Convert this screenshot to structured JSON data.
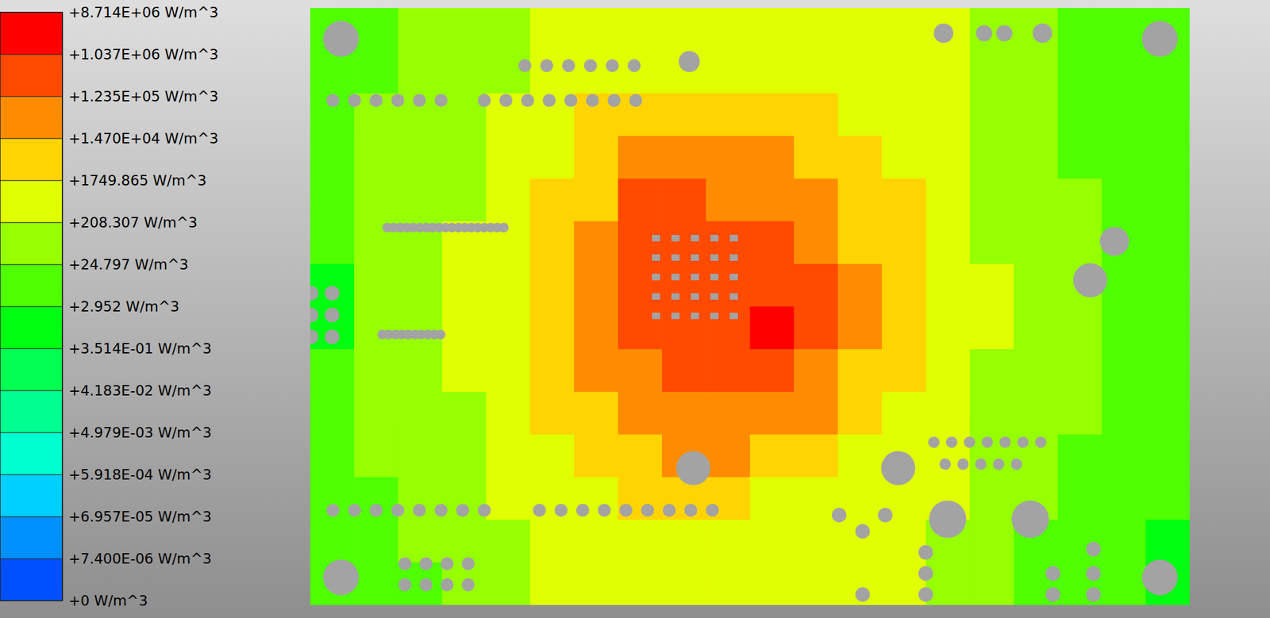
{
  "chart_data": {
    "type": "heatmap",
    "cells": [
      [
        8,
        8,
        70,
        70,
        70,
        600,
        600,
        600,
        600,
        600,
        600,
        600,
        600,
        600,
        600,
        70,
        70,
        8,
        8,
        8
      ],
      [
        8,
        8,
        70,
        70,
        70,
        600,
        600,
        600,
        600,
        600,
        600,
        600,
        600,
        600,
        600,
        70,
        70,
        8,
        8,
        8
      ],
      [
        8,
        70,
        70,
        70,
        600,
        600,
        5000,
        5000,
        5000,
        5000,
        5000,
        5000,
        600,
        600,
        600,
        70,
        70,
        8,
        8,
        8
      ],
      [
        8,
        70,
        70,
        70,
        600,
        600,
        5000,
        40000,
        40000,
        40000,
        40000,
        5000,
        5000,
        600,
        600,
        70,
        70,
        8,
        8,
        8
      ],
      [
        8,
        70,
        70,
        70,
        600,
        5000,
        5000,
        350000,
        350000,
        40000,
        40000,
        40000,
        5000,
        5000,
        600,
        70,
        70,
        70,
        8,
        8
      ],
      [
        8,
        70,
        70,
        600,
        600,
        5000,
        40000,
        350000,
        350000,
        350000,
        350000,
        40000,
        5000,
        5000,
        600,
        70,
        70,
        70,
        8,
        8
      ],
      [
        1,
        70,
        70,
        600,
        600,
        5000,
        40000,
        350000,
        350000,
        350000,
        350000,
        350000,
        40000,
        5000,
        600,
        600,
        70,
        70,
        8,
        8
      ],
      [
        1,
        70,
        70,
        600,
        600,
        5000,
        40000,
        350000,
        350000,
        350000,
        3000000,
        350000,
        40000,
        5000,
        600,
        600,
        70,
        70,
        8,
        8
      ],
      [
        8,
        70,
        70,
        600,
        600,
        5000,
        40000,
        40000,
        350000,
        350000,
        350000,
        40000,
        5000,
        5000,
        600,
        70,
        70,
        70,
        8,
        8
      ],
      [
        8,
        70,
        70,
        70,
        600,
        5000,
        5000,
        40000,
        40000,
        40000,
        40000,
        40000,
        5000,
        600,
        600,
        70,
        70,
        70,
        8,
        8
      ],
      [
        8,
        70,
        70,
        70,
        600,
        600,
        5000,
        5000,
        40000,
        40000,
        5000,
        5000,
        600,
        600,
        600,
        70,
        70,
        8,
        8,
        8
      ],
      [
        8,
        8,
        70,
        70,
        600,
        600,
        600,
        5000,
        5000,
        5000,
        600,
        600,
        600,
        600,
        600,
        70,
        70,
        8,
        8,
        8
      ],
      [
        8,
        8,
        70,
        70,
        70,
        600,
        600,
        600,
        600,
        600,
        600,
        600,
        600,
        600,
        70,
        70,
        8,
        8,
        8,
        1
      ],
      [
        8,
        8,
        8,
        70,
        70,
        600,
        600,
        600,
        600,
        600,
        600,
        600,
        600,
        600,
        70,
        70,
        8,
        8,
        8,
        1
      ]
    ],
    "colorbar": {
      "range": [
        0,
        8714000
      ],
      "ticks": [
        {
          "value": 0,
          "label": "+0 W/m^3"
        },
        {
          "value": 7.4e-06,
          "label": "+7.400E-06 W/m^3"
        },
        {
          "value": 6.957e-05,
          "label": "+6.957E-05 W/m^3"
        },
        {
          "value": 0.0005918,
          "label": "+5.918E-04 W/m^3"
        },
        {
          "value": 0.004979,
          "label": "+4.979E-03 W/m^3"
        },
        {
          "value": 0.04183,
          "label": "+4.183E-02 W/m^3"
        },
        {
          "value": 0.3514,
          "label": "+3.514E-01 W/m^3"
        },
        {
          "value": 2.952,
          "label": "+2.952 W/m^3"
        },
        {
          "value": 24.797,
          "label": "+24.797 W/m^3"
        },
        {
          "value": 208.307,
          "label": "+208.307 W/m^3"
        },
        {
          "value": 1749.865,
          "label": "+1749.865 W/m^3"
        },
        {
          "value": 14700,
          "label": "+1.470E+04 W/m^3"
        },
        {
          "value": 123500,
          "label": "+1.235E+05 W/m^3"
        },
        {
          "value": 1037000,
          "label": "+1.037E+06 W/m^3"
        },
        {
          "value": 8714000,
          "label": "+8.714E+06 W/m^3"
        }
      ],
      "colors": [
        "#0050ff",
        "#0090ff",
        "#00d0ff",
        "#00ffd0",
        "#00ff90",
        "#00ff50",
        "#00ff10",
        "#50ff00",
        "#96ff00",
        "#e0ff00",
        "#ffd400",
        "#ff8c00",
        "#ff4a00",
        "#ff0000"
      ]
    }
  }
}
